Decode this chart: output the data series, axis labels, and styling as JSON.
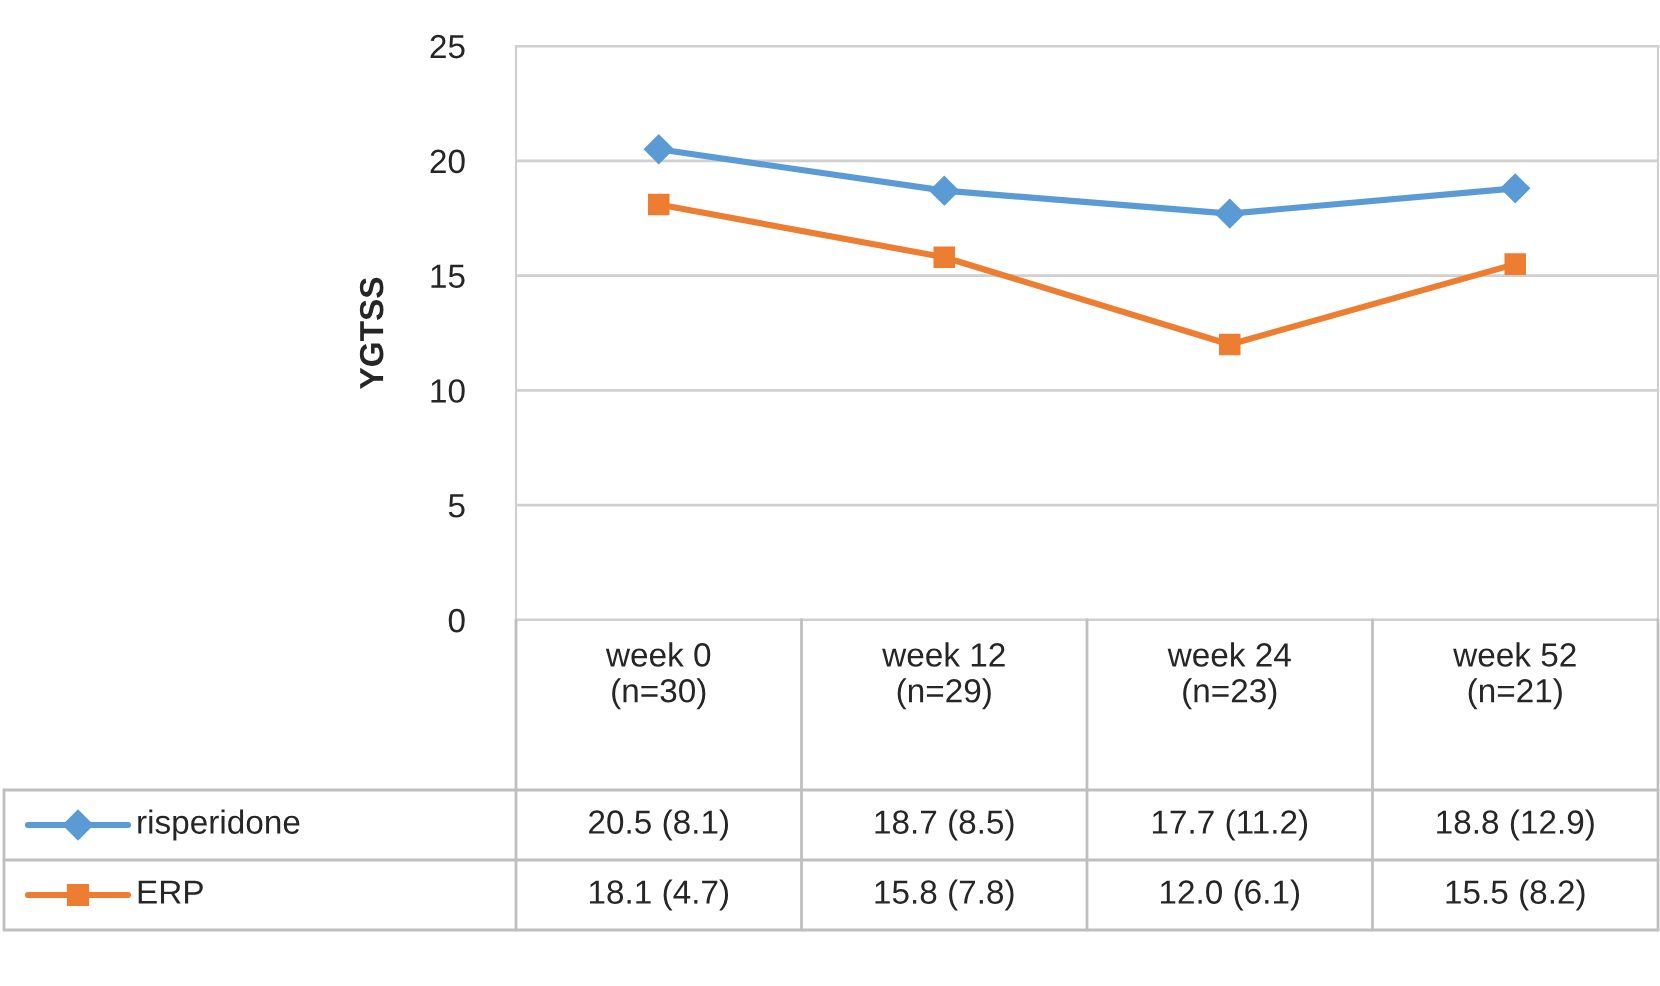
{
  "chart_data": {
    "type": "line",
    "ylabel": "YGTSS",
    "categories": [
      "week 0\n(n=30)",
      "week 12\n(n=29)",
      "week 24\n(n=23)",
      "week 52\n(n=21)"
    ],
    "series": [
      {
        "name": "risperidone",
        "color": "#5b9bd5",
        "marker": "diamond",
        "values": [
          20.5,
          18.7,
          17.7,
          18.8
        ],
        "value_labels": [
          "20.5 (8.1)",
          "18.7 (8.5)",
          "17.7 (11.2)",
          "18.8 (12.9)"
        ]
      },
      {
        "name": "ERP",
        "color": "#ed7d31",
        "marker": "square",
        "values": [
          18.1,
          15.8,
          12.0,
          15.5
        ],
        "value_labels": [
          "18.1 (4.7)",
          "15.8 (7.8)",
          "12.0 (6.1)",
          "15.5 (8.2)"
        ]
      }
    ],
    "ylim": [
      0,
      25
    ],
    "yticks": [
      0,
      5,
      10,
      15,
      20,
      25
    ],
    "grid": "y",
    "legend": "bottom left"
  }
}
